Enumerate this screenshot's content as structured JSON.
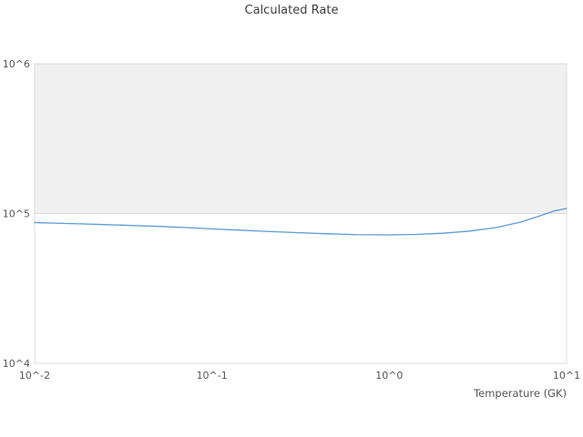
{
  "title": "Calculated Rate",
  "chart_data": {
    "type": "line",
    "title": "Calculated Rate",
    "xlabel": "Temperature (GK)",
    "ylabel": "",
    "x_scale": "log",
    "y_scale": "log",
    "xlim": [
      0.01,
      10
    ],
    "ylim": [
      10000,
      1000000
    ],
    "grid": "horizontal-decades",
    "legend": "none",
    "x_ticks": [
      {
        "value": 0.01,
        "label": "10^-2"
      },
      {
        "value": 0.1,
        "label": "10^-1"
      },
      {
        "value": 1,
        "label": "10^0"
      },
      {
        "value": 10,
        "label": "10^1"
      }
    ],
    "y_ticks": [
      {
        "value": 1000000,
        "label": "10^6"
      },
      {
        "value": 100000,
        "label": "10^5"
      },
      {
        "value": 10000,
        "label": "10^4"
      }
    ],
    "bands": [
      {
        "from": 100000,
        "to": 1000000,
        "color": "#f0f0f0"
      }
    ],
    "series": [
      {
        "name": "Calculated Rate",
        "color": "#5b9bd5",
        "x": [
          0.01,
          0.013,
          0.018,
          0.025,
          0.035,
          0.05,
          0.07,
          0.1,
          0.14,
          0.2,
          0.3,
          0.45,
          0.65,
          1.0,
          1.4,
          2.0,
          2.8,
          4.0,
          5.5,
          7.0,
          8.5,
          10.0
        ],
        "y": [
          87000,
          86200,
          85300,
          84300,
          83200,
          82000,
          80600,
          79000,
          77500,
          76000,
          74500,
          73200,
          72200,
          72000,
          72500,
          73800,
          76200,
          80500,
          87500,
          96000,
          104000,
          108000
        ]
      }
    ],
    "colors": {
      "frame": "#dddddd",
      "gridline": "#dddddd",
      "tick_text": "#555555",
      "title_text": "#3f3f3f",
      "plot_background": "#ffffff"
    }
  }
}
